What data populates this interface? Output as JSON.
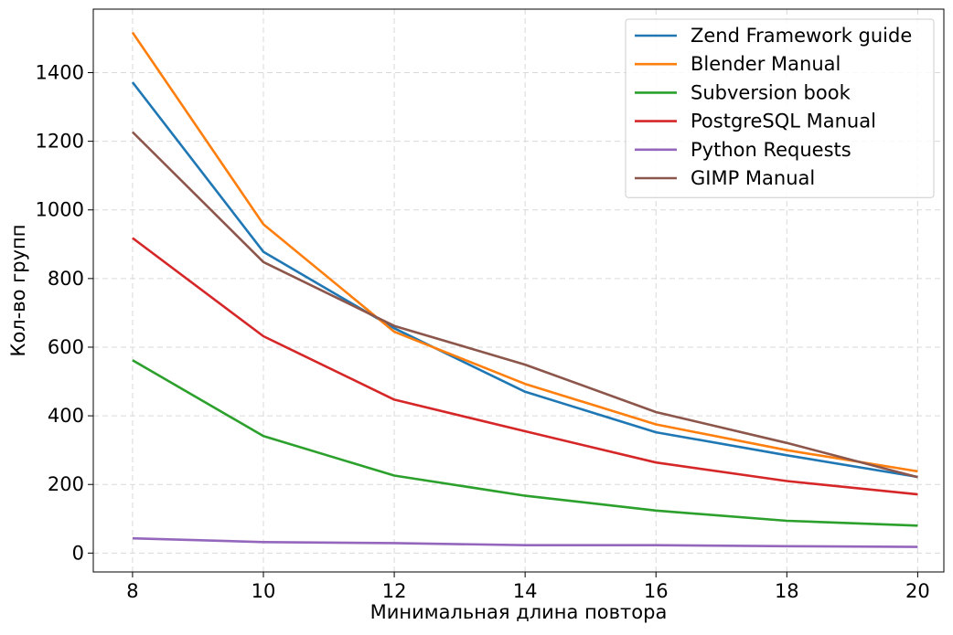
{
  "chart_data": {
    "type": "line",
    "title": "",
    "xlabel": "Минимальная длина повтора",
    "ylabel": "Кол-во групп",
    "x": [
      8,
      10,
      12,
      14,
      16,
      18,
      20
    ],
    "xticks": [
      "8",
      "10",
      "12",
      "14",
      "16",
      "18",
      "20"
    ],
    "yticks": [
      "0",
      "200",
      "400",
      "600",
      "800",
      "1000",
      "1200",
      "1400"
    ],
    "xlim": [
      7.4,
      20.4
    ],
    "ylim": [
      -55,
      1585
    ],
    "grid": true,
    "legend_position": "top-right",
    "series": [
      {
        "name": "Zend Framework guide",
        "color": "#1f77b4",
        "values": [
          1372,
          878,
          655,
          470,
          352,
          285,
          222
        ]
      },
      {
        "name": "Blender Manual",
        "color": "#ff7f0e",
        "values": [
          1517,
          958,
          645,
          493,
          375,
          300,
          238
        ]
      },
      {
        "name": "Subversion book",
        "color": "#2ca02c",
        "values": [
          562,
          341,
          226,
          167,
          124,
          94,
          80
        ]
      },
      {
        "name": "PostgreSQL Manual",
        "color": "#d62728",
        "values": [
          918,
          632,
          447,
          355,
          264,
          210,
          171
        ]
      },
      {
        "name": "Python Requests",
        "color": "#9467bd",
        "values": [
          43,
          32,
          29,
          23,
          23,
          20,
          18
        ]
      },
      {
        "name": "GIMP Manual",
        "color": "#8c564b",
        "values": [
          1227,
          848,
          662,
          549,
          411,
          321,
          221
        ]
      }
    ]
  }
}
